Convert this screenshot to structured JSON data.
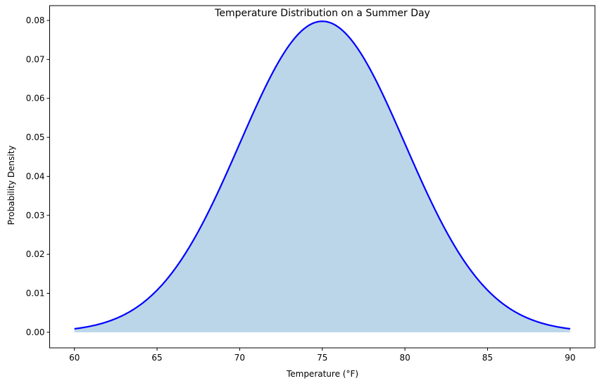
{
  "chart_data": {
    "type": "area",
    "title": "Temperature Distribution on a Summer Day",
    "xlabel": "Temperature (°F)",
    "ylabel": "Probability Density",
    "distribution": {
      "name": "normal",
      "mean": 75,
      "std": 5
    },
    "x_range": [
      60,
      90
    ],
    "xlim": [
      58.5,
      91.5
    ],
    "ylim": [
      -0.004,
      0.0838
    ],
    "xticks": [
      60,
      65,
      70,
      75,
      80,
      85,
      90
    ],
    "xtick_labels": [
      "60",
      "65",
      "70",
      "75",
      "80",
      "85",
      "90"
    ],
    "yticks": [
      0,
      0.01,
      0.02,
      0.03,
      0.04,
      0.05,
      0.06,
      0.07,
      0.08
    ],
    "ytick_labels": [
      "0.00",
      "0.01",
      "0.02",
      "0.03",
      "0.04",
      "0.05",
      "0.06",
      "0.07",
      "0.08"
    ],
    "line_color": "#0000ff",
    "fill_color": "#1f77b4",
    "fill_alpha": 0.3,
    "grid": false
  }
}
